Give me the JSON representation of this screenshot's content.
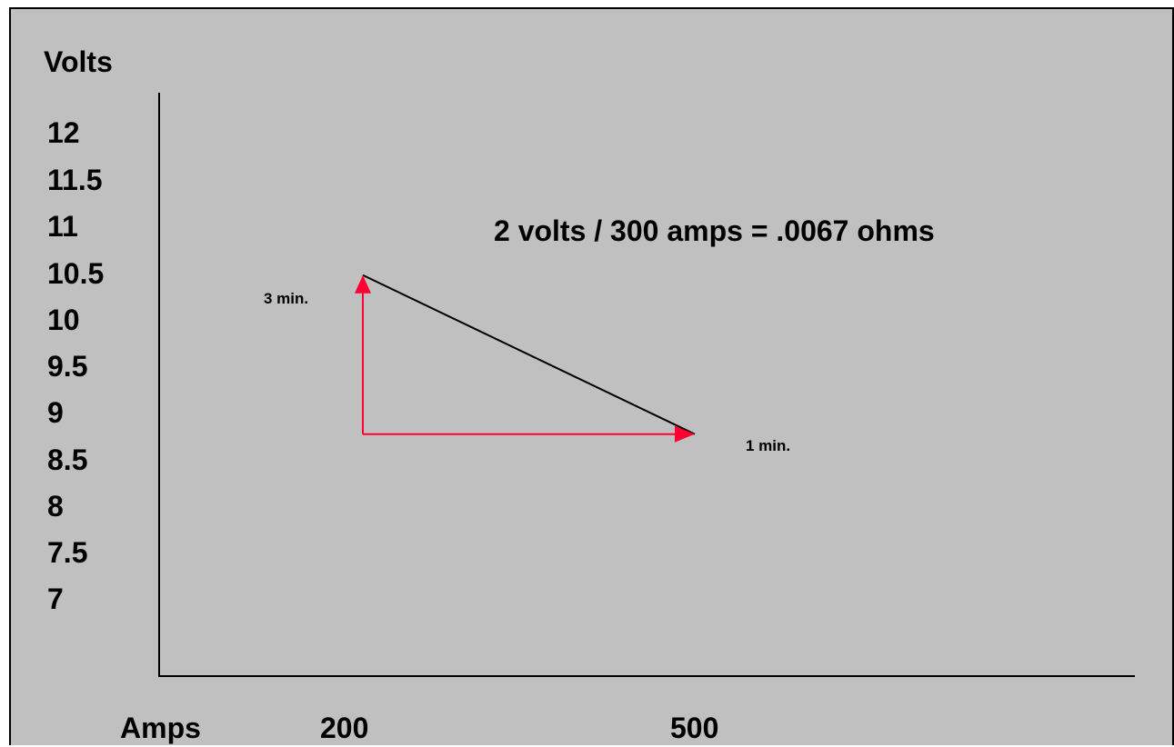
{
  "chart_data": {
    "type": "line",
    "title": "",
    "ylabel": "Volts",
    "xlabel": "Amps",
    "y_tick_labels": [
      "12",
      "11.5",
      "11",
      "10.5",
      "10",
      "9.5",
      "9",
      "8.5",
      "8",
      "7.5",
      "7"
    ],
    "x_tick_labels": [
      "200",
      "500"
    ],
    "series": [
      {
        "points": [
          {
            "amps": 200,
            "volts": 10.5,
            "label": "3 min."
          },
          {
            "amps": 500,
            "volts": 8.5,
            "label": "1 min."
          }
        ]
      }
    ],
    "annotation": "2 volts / 300 amps = .0067 ohms",
    "colors": {
      "background": "#c0c0c0",
      "line": "#000000",
      "arrows": "#ff0033"
    }
  }
}
